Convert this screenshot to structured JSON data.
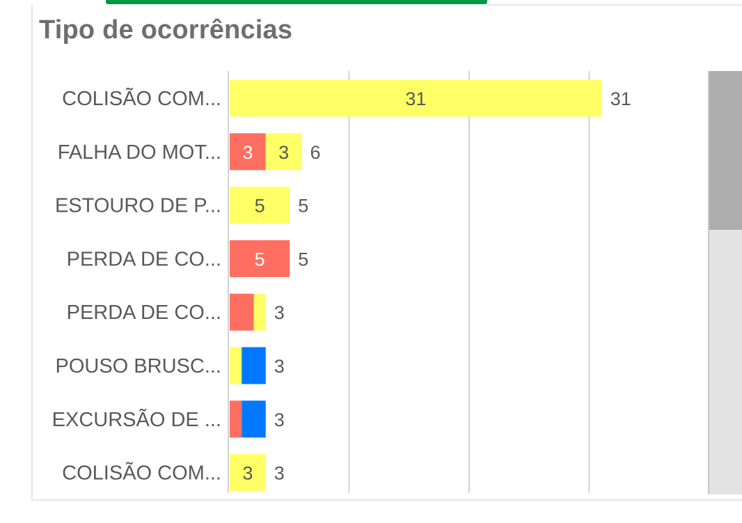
{
  "title": "Tipo de ocorrências",
  "colors": {
    "yellow": "#ffff66",
    "red": "#ff6f61",
    "blue": "#0078ff",
    "grid": "#d2d2d2",
    "text": "#595959"
  },
  "chart_data": {
    "type": "bar",
    "orientation": "horizontal",
    "stacked": true,
    "title": "Tipo de ocorrências",
    "xlim": [
      0,
      40
    ],
    "grid": true,
    "categories": [
      "COLISÃO COM...",
      "FALHA DO MOT...",
      "ESTOURO DE P...",
      "PERDA DE CO...",
      "PERDA DE CO...",
      "POUSO BRUSC...",
      "EXCURSÃO DE ...",
      "COLISÃO COM..."
    ],
    "bars": [
      {
        "total": 31,
        "segments": [
          {
            "color": "yellow",
            "value": 31,
            "label": "31"
          }
        ]
      },
      {
        "total": 6,
        "segments": [
          {
            "color": "red",
            "value": 3,
            "label": "3"
          },
          {
            "color": "yellow",
            "value": 3,
            "label": "3"
          }
        ]
      },
      {
        "total": 5,
        "segments": [
          {
            "color": "yellow",
            "value": 5,
            "label": "5"
          }
        ]
      },
      {
        "total": 5,
        "segments": [
          {
            "color": "red",
            "value": 5,
            "label": "5"
          }
        ]
      },
      {
        "total": 3,
        "segments": [
          {
            "color": "red",
            "value": 2,
            "label": ""
          },
          {
            "color": "yellow",
            "value": 1,
            "label": ""
          }
        ]
      },
      {
        "total": 3,
        "segments": [
          {
            "color": "yellow",
            "value": 1,
            "label": ""
          },
          {
            "color": "blue",
            "value": 2,
            "label": ""
          }
        ]
      },
      {
        "total": 3,
        "segments": [
          {
            "color": "red",
            "value": 1,
            "label": ""
          },
          {
            "color": "blue",
            "value": 2,
            "label": ""
          }
        ]
      },
      {
        "total": 3,
        "segments": [
          {
            "color": "yellow",
            "value": 3,
            "label": "3"
          }
        ]
      }
    ]
  }
}
